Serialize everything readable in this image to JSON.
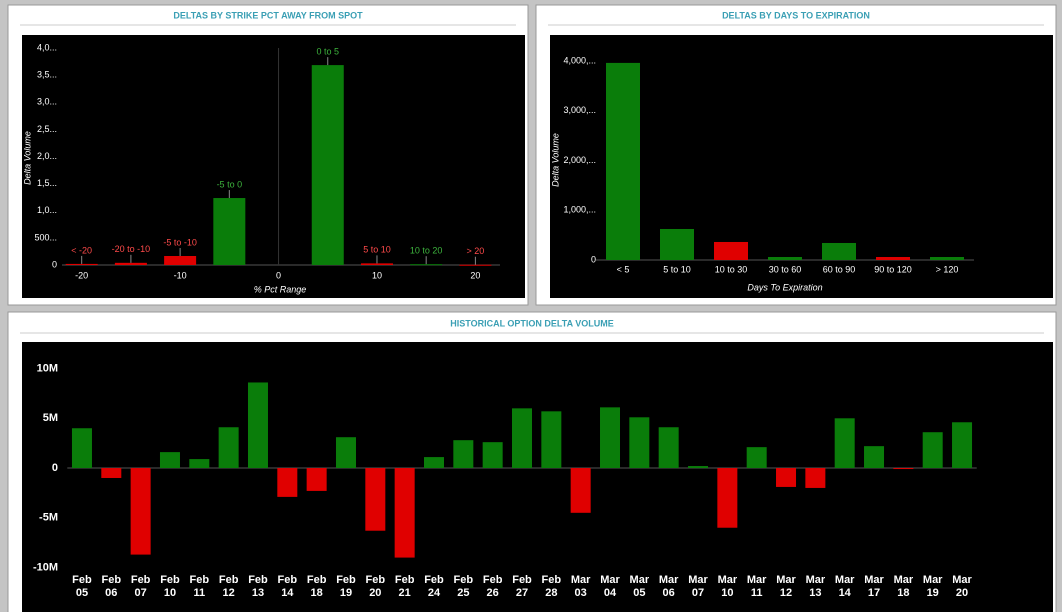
{
  "chart_data": [
    {
      "type": "bar",
      "title": "DELTAS BY STRIKE PCT AWAY FROM SPOT",
      "x": [
        -20,
        -15,
        -10,
        -5,
        5,
        10,
        15,
        20
      ],
      "labels": [
        "< -20",
        "-20 to -10",
        "-5 to -10",
        "-5 to 0",
        "0 to 5",
        "5 to 10",
        "10 to 20",
        "> 20"
      ],
      "values": [
        20,
        40,
        166,
        1235,
        3687,
        30,
        15,
        5
      ],
      "colors": [
        "#e00000",
        "#e00000",
        "#e00000",
        "#0a7d0a",
        "#0a7d0a",
        "#e00000",
        "#0a7d0a",
        "#e00000"
      ],
      "xlim": [
        -22,
        22.5
      ],
      "xticks": [
        -20,
        -10,
        0,
        10,
        20
      ],
      "ylim": [
        0,
        4150
      ],
      "yticks": [
        0,
        {
          "value": 500,
          "label": "500..."
        },
        {
          "value": 1000,
          "label": "1,0..."
        },
        {
          "value": 1500,
          "label": "1,5..."
        },
        {
          "value": 2000,
          "label": "2,0..."
        },
        {
          "value": 2500,
          "label": "2,5..."
        },
        {
          "value": 3000,
          "label": "3,0..."
        },
        {
          "value": 3500,
          "label": "3,5..."
        },
        {
          "value": 4000,
          "label": "4,0..."
        }
      ],
      "x_label": "% Pct Range",
      "y_label": "Delta Volume"
    },
    {
      "type": "bar",
      "title": "DELTAS BY DAYS TO EXPIRATION",
      "categories": [
        "< 5",
        "5 to 10",
        "10 to 30",
        "30 to 60",
        "60 to 90",
        "90 to 120",
        "> 120"
      ],
      "values": [
        3960,
        623,
        362,
        60,
        342,
        60,
        60
      ],
      "colors": [
        "#0a7d0a",
        "#0a7d0a",
        "#e00000",
        "#0a7d0a",
        "#0a7d0a",
        "#e00000",
        "#0a7d0a"
      ],
      "ylim": [
        0,
        4400
      ],
      "yticks": [
        0,
        {
          "value": 1000,
          "label": "1,000,..."
        },
        {
          "value": 2000,
          "label": "2,000,..."
        },
        {
          "value": 3000,
          "label": "3,000,..."
        },
        {
          "value": 4000,
          "label": "4,000,..."
        }
      ],
      "x_label": "Days To Expiration",
      "y_label": "Delta Volume"
    },
    {
      "type": "bar",
      "title": "HISTORICAL OPTION DELTA VOLUME",
      "categories": [
        "Feb 05",
        "Feb 06",
        "Feb 07",
        "Feb 10",
        "Feb 11",
        "Feb 12",
        "Feb 13",
        "Feb 14",
        "Feb 18",
        "Feb 19",
        "Feb 20",
        "Feb 21",
        "Feb 24",
        "Feb 25",
        "Feb 26",
        "Feb 27",
        "Feb 28",
        "Mar 03",
        "Mar 04",
        "Mar 05",
        "Mar 06",
        "Mar 07",
        "Mar 10",
        "Mar 11",
        "Mar 12",
        "Mar 13",
        "Mar 14",
        "Mar 17",
        "Mar 18",
        "Mar 19",
        "Mar 20"
      ],
      "values": [
        4000000,
        -1000000,
        -8700000,
        1600000,
        900000,
        4100000,
        8600000,
        -2900000,
        -2300000,
        3100000,
        -6300000,
        -9000000,
        1100000,
        2800000,
        2600000,
        6000000,
        5700000,
        -4500000,
        6100000,
        5100000,
        4100000,
        200000,
        -6000000,
        2100000,
        -1900000,
        -2000000,
        5000000,
        2200000,
        -100000,
        3600000,
        4600000
      ],
      "positive_color": "#0a7d0a",
      "negative_color": "#e00000",
      "ylim": [
        -10500000,
        11000000
      ],
      "yticks": [
        {
          "value": -10000000,
          "label": "-10M"
        },
        {
          "value": -5000000,
          "label": "-5M"
        },
        0,
        {
          "value": 5000000,
          "label": "5M"
        },
        {
          "value": 10000000,
          "label": "10M"
        }
      ]
    }
  ]
}
